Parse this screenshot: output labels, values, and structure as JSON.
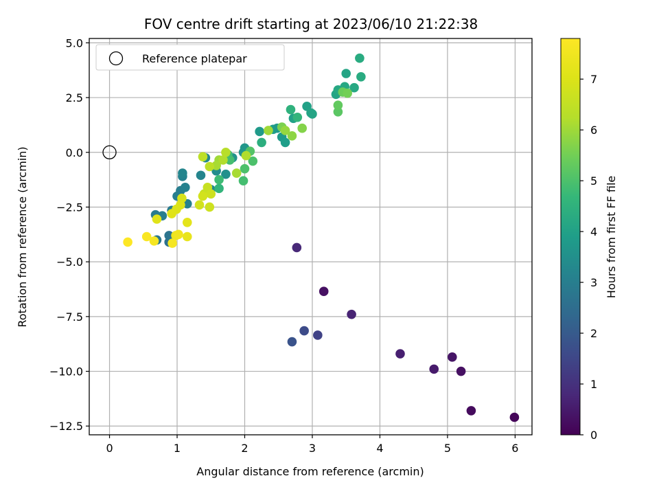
{
  "chart_data": {
    "type": "scatter",
    "title": "FOV centre drift starting at 2023/06/10 21:22:38",
    "xlabel": "Angular distance from reference (arcmin)",
    "ylabel": "Rotation from reference (arcmin)",
    "xlim": [
      -0.3,
      6.25
    ],
    "ylim": [
      -12.9,
      5.2
    ],
    "xticks": [
      0,
      1,
      2,
      3,
      4,
      5,
      6
    ],
    "xtick_labels": [
      "0",
      "1",
      "2",
      "3",
      "4",
      "5",
      "6"
    ],
    "yticks": [
      5.0,
      2.5,
      0.0,
      -2.5,
      -5.0,
      -7.5,
      -10.0,
      -12.5
    ],
    "ytick_labels": [
      "5.0",
      "2.5",
      "0.0",
      "−2.5",
      "−5.0",
      "−7.5",
      "−10.0",
      "−12.5"
    ],
    "grid": true,
    "legend": {
      "position": "top-left",
      "entries": [
        {
          "label": "Reference platepar",
          "marker": "open-circle"
        }
      ]
    },
    "reference_point": {
      "x": 0.0,
      "y": 0.0
    },
    "colorbar": {
      "label": "Hours from first FF file",
      "min": 0,
      "max": 7.8,
      "ticks": [
        0,
        1,
        2,
        3,
        4,
        5,
        6,
        7
      ],
      "colormap": "viridis"
    },
    "points": [
      {
        "x": 5.99,
        "y": -12.1,
        "t": 0.1
      },
      {
        "x": 5.35,
        "y": -11.8,
        "t": 0.2
      },
      {
        "x": 5.2,
        "y": -10.0,
        "t": 0.3
      },
      {
        "x": 5.07,
        "y": -9.35,
        "t": 0.4
      },
      {
        "x": 4.8,
        "y": -9.9,
        "t": 0.5
      },
      {
        "x": 4.3,
        "y": -9.2,
        "t": 0.6
      },
      {
        "x": 3.58,
        "y": -7.4,
        "t": 0.7
      },
      {
        "x": 3.17,
        "y": -6.35,
        "t": 0.3
      },
      {
        "x": 2.77,
        "y": -4.35,
        "t": 0.8
      },
      {
        "x": 3.08,
        "y": -8.35,
        "t": 1.4
      },
      {
        "x": 2.88,
        "y": -8.15,
        "t": 1.6
      },
      {
        "x": 2.7,
        "y": -8.65,
        "t": 1.8
      },
      {
        "x": 0.88,
        "y": -4.1,
        "t": 2.6
      },
      {
        "x": 0.88,
        "y": -3.8,
        "t": 2.7
      },
      {
        "x": 0.7,
        "y": -4.0,
        "t": 2.8
      },
      {
        "x": 0.68,
        "y": -2.85,
        "t": 2.9
      },
      {
        "x": 0.78,
        "y": -2.9,
        "t": 3.0
      },
      {
        "x": 0.92,
        "y": -2.65,
        "t": 2.9
      },
      {
        "x": 1.0,
        "y": -2.0,
        "t": 3.0
      },
      {
        "x": 1.05,
        "y": -1.75,
        "t": 3.0
      },
      {
        "x": 1.12,
        "y": -1.6,
        "t": 3.1
      },
      {
        "x": 1.08,
        "y": -1.1,
        "t": 3.1
      },
      {
        "x": 1.08,
        "y": -0.95,
        "t": 3.2
      },
      {
        "x": 1.15,
        "y": -2.35,
        "t": 3.1
      },
      {
        "x": 1.35,
        "y": -1.05,
        "t": 3.2
      },
      {
        "x": 1.42,
        "y": -0.25,
        "t": 3.3
      },
      {
        "x": 1.5,
        "y": -1.7,
        "t": 3.3
      },
      {
        "x": 1.58,
        "y": -0.85,
        "t": 3.4
      },
      {
        "x": 1.72,
        "y": -1.0,
        "t": 3.5
      },
      {
        "x": 1.82,
        "y": -0.25,
        "t": 3.6
      },
      {
        "x": 1.98,
        "y": 0.0,
        "t": 3.6
      },
      {
        "x": 2.0,
        "y": 0.2,
        "t": 3.7
      },
      {
        "x": 2.22,
        "y": 0.95,
        "t": 3.8
      },
      {
        "x": 2.42,
        "y": 1.05,
        "t": 3.9
      },
      {
        "x": 2.48,
        "y": 1.1,
        "t": 3.8
      },
      {
        "x": 2.55,
        "y": 0.7,
        "t": 3.8
      },
      {
        "x": 2.6,
        "y": 0.45,
        "t": 3.9
      },
      {
        "x": 2.72,
        "y": 1.55,
        "t": 4.0
      },
      {
        "x": 2.92,
        "y": 2.1,
        "t": 4.0
      },
      {
        "x": 2.98,
        "y": 1.8,
        "t": 4.1
      },
      {
        "x": 3.0,
        "y": 1.75,
        "t": 4.1
      },
      {
        "x": 3.35,
        "y": 2.65,
        "t": 4.1
      },
      {
        "x": 3.38,
        "y": 2.85,
        "t": 4.2
      },
      {
        "x": 3.48,
        "y": 3.0,
        "t": 4.2
      },
      {
        "x": 3.5,
        "y": 3.6,
        "t": 4.1
      },
      {
        "x": 3.62,
        "y": 2.95,
        "t": 4.2
      },
      {
        "x": 3.7,
        "y": 4.3,
        "t": 4.3
      },
      {
        "x": 3.72,
        "y": 3.45,
        "t": 4.3
      },
      {
        "x": 2.25,
        "y": 0.45,
        "t": 4.4
      },
      {
        "x": 2.68,
        "y": 1.95,
        "t": 4.5
      },
      {
        "x": 2.78,
        "y": 1.6,
        "t": 4.6
      },
      {
        "x": 1.62,
        "y": -1.65,
        "t": 4.6
      },
      {
        "x": 1.62,
        "y": -1.25,
        "t": 4.8
      },
      {
        "x": 1.75,
        "y": -0.1,
        "t": 4.8
      },
      {
        "x": 1.78,
        "y": -0.35,
        "t": 4.9
      },
      {
        "x": 1.98,
        "y": -1.3,
        "t": 4.9
      },
      {
        "x": 2.0,
        "y": -0.75,
        "t": 5.0
      },
      {
        "x": 2.12,
        "y": -0.4,
        "t": 5.0
      },
      {
        "x": 2.08,
        "y": 0.05,
        "t": 5.1
      },
      {
        "x": 3.38,
        "y": 1.85,
        "t": 5.2
      },
      {
        "x": 3.38,
        "y": 2.15,
        "t": 5.3
      },
      {
        "x": 3.45,
        "y": 2.75,
        "t": 5.4
      },
      {
        "x": 3.52,
        "y": 2.7,
        "t": 5.5
      },
      {
        "x": 2.55,
        "y": 1.15,
        "t": 5.6
      },
      {
        "x": 2.85,
        "y": 1.1,
        "t": 5.7
      },
      {
        "x": 2.7,
        "y": 0.75,
        "t": 5.8
      },
      {
        "x": 2.6,
        "y": 1.0,
        "t": 5.9
      },
      {
        "x": 2.35,
        "y": 1.0,
        "t": 6.0
      },
      {
        "x": 1.62,
        "y": -0.35,
        "t": 6.0
      },
      {
        "x": 1.58,
        "y": -0.6,
        "t": 6.1
      },
      {
        "x": 1.88,
        "y": -0.95,
        "t": 6.1
      },
      {
        "x": 2.02,
        "y": -0.15,
        "t": 6.2
      },
      {
        "x": 1.68,
        "y": -0.35,
        "t": 6.2
      },
      {
        "x": 1.72,
        "y": 0.0,
        "t": 6.3
      },
      {
        "x": 1.38,
        "y": -0.2,
        "t": 6.4
      },
      {
        "x": 1.48,
        "y": -0.65,
        "t": 6.4
      },
      {
        "x": 1.45,
        "y": -1.6,
        "t": 6.6
      },
      {
        "x": 1.4,
        "y": -1.9,
        "t": 6.6
      },
      {
        "x": 1.5,
        "y": -1.9,
        "t": 6.7
      },
      {
        "x": 1.48,
        "y": -2.5,
        "t": 6.7
      },
      {
        "x": 1.33,
        "y": -2.4,
        "t": 6.8
      },
      {
        "x": 1.38,
        "y": -2.0,
        "t": 6.8
      },
      {
        "x": 1.07,
        "y": -2.1,
        "t": 6.9
      },
      {
        "x": 1.05,
        "y": -2.4,
        "t": 7.0
      },
      {
        "x": 0.99,
        "y": -2.6,
        "t": 7.0
      },
      {
        "x": 0.92,
        "y": -2.8,
        "t": 7.1
      },
      {
        "x": 0.7,
        "y": -3.05,
        "t": 7.1
      },
      {
        "x": 1.15,
        "y": -3.2,
        "t": 7.2
      },
      {
        "x": 1.15,
        "y": -3.85,
        "t": 7.3
      },
      {
        "x": 0.98,
        "y": -3.8,
        "t": 7.4
      },
      {
        "x": 1.02,
        "y": -3.75,
        "t": 7.5
      },
      {
        "x": 0.93,
        "y": -4.15,
        "t": 7.6
      },
      {
        "x": 0.66,
        "y": -4.05,
        "t": 7.6
      },
      {
        "x": 0.55,
        "y": -3.85,
        "t": 7.7
      },
      {
        "x": 0.27,
        "y": -4.1,
        "t": 7.8
      }
    ]
  }
}
